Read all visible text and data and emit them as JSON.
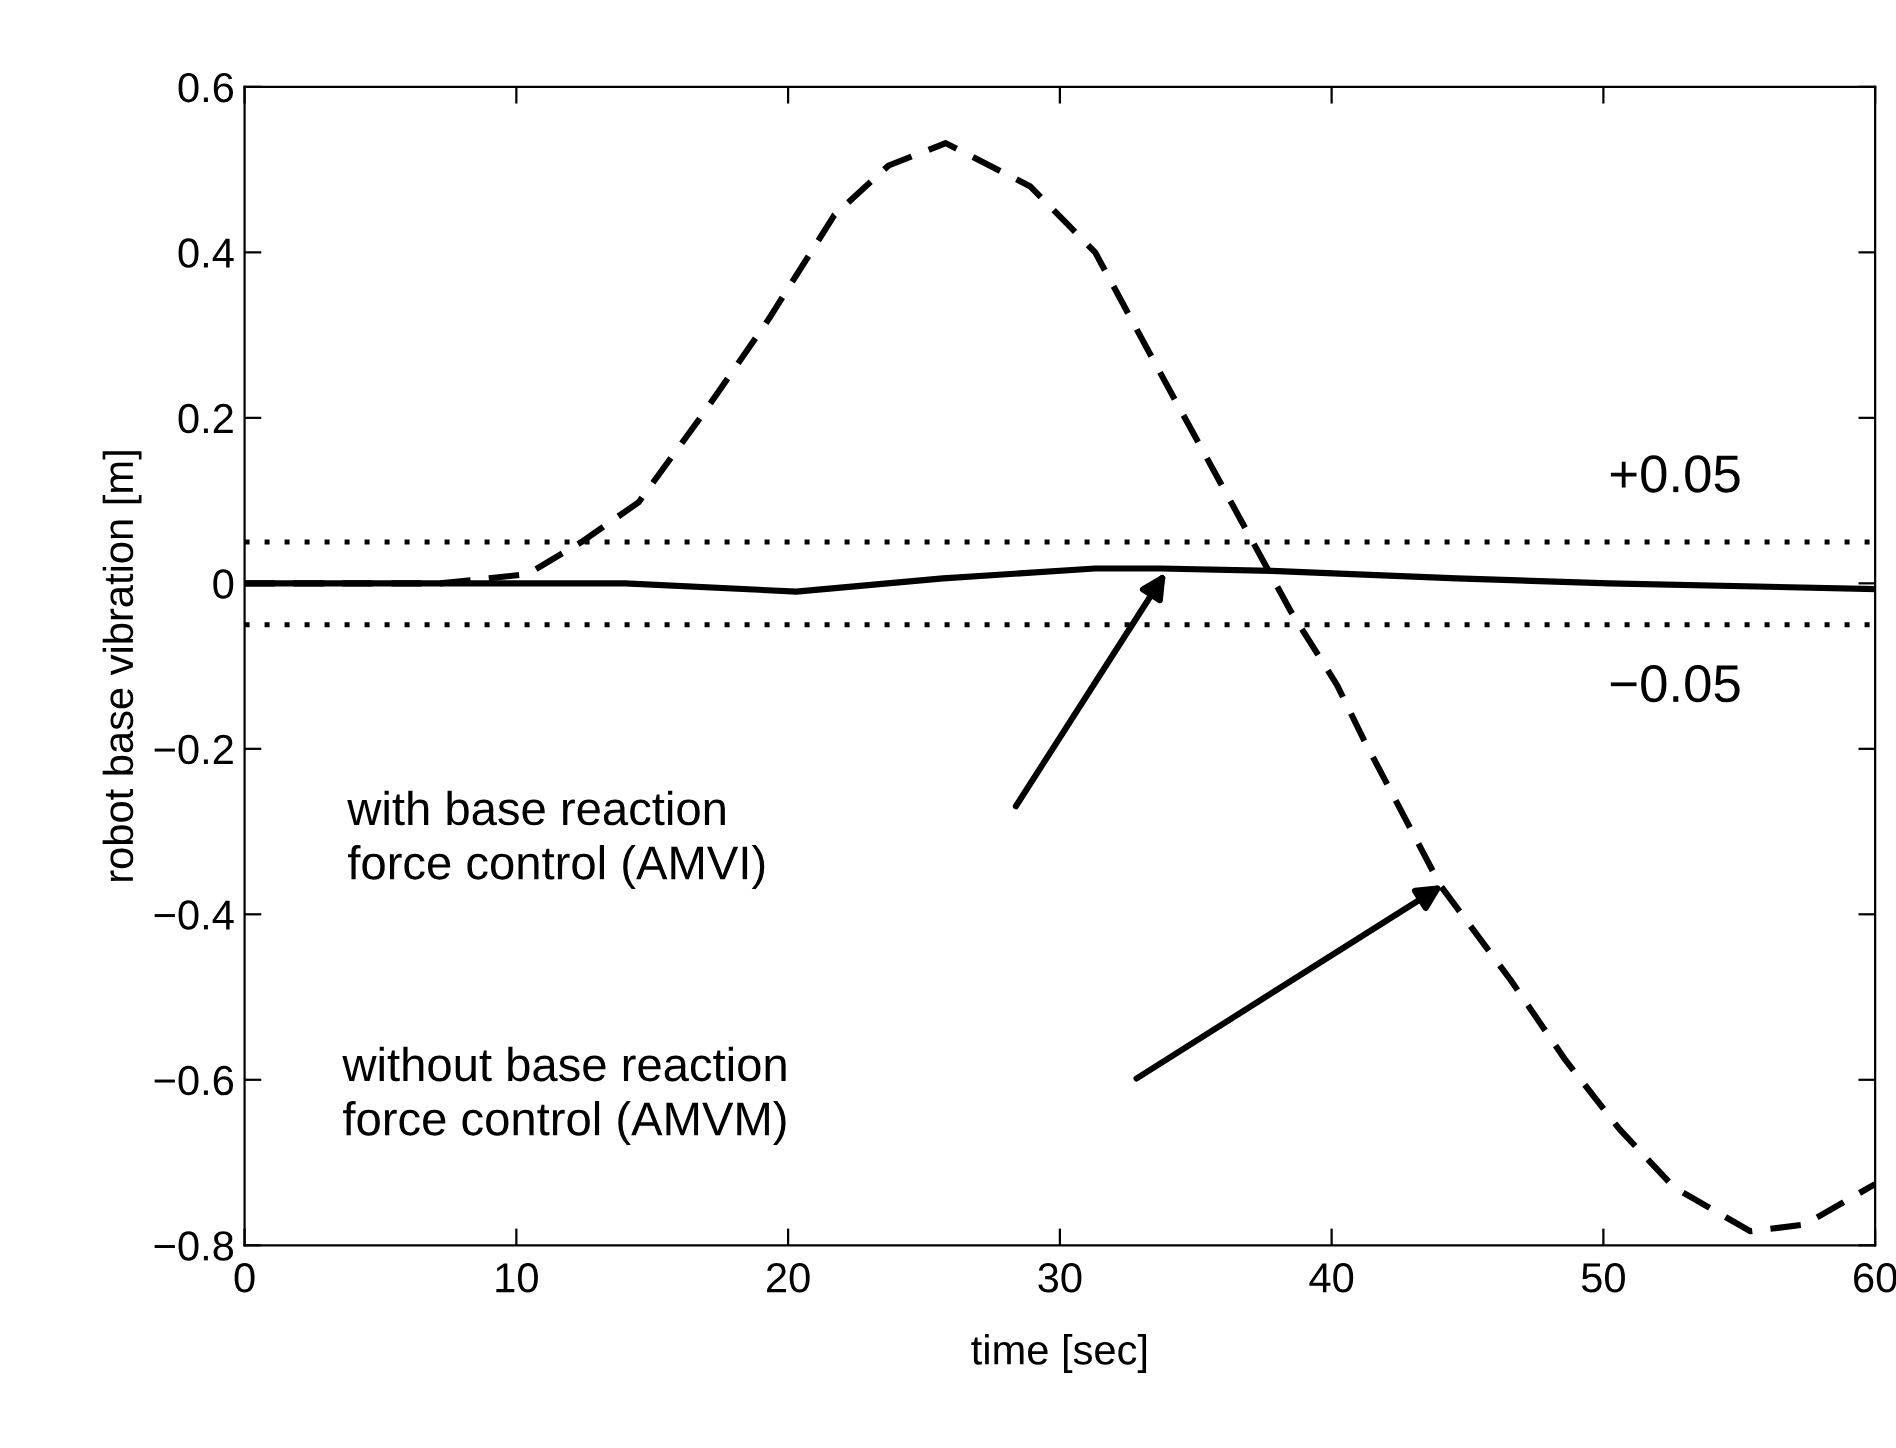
{
  "chart_data": {
    "type": "line",
    "xlabel": "time [sec]",
    "ylabel": "robot base vibration [m]",
    "xlim": [
      0,
      60
    ],
    "ylim": [
      -0.8,
      0.6
    ],
    "xticks": [
      0,
      10,
      20,
      30,
      40,
      50,
      60
    ],
    "yticks": [
      {
        "value": -0.8,
        "label": "−0.8"
      },
      {
        "value": -0.6,
        "label": "−0.6"
      },
      {
        "value": -0.4,
        "label": "−0.4"
      },
      {
        "value": -0.2,
        "label": "−0.2"
      },
      0,
      0.2,
      0.4,
      0.6
    ],
    "grid": false,
    "legend": false,
    "marker": "none",
    "series": [
      {
        "color": "#000000",
        "line_style": "dashed",
        "x": [
          0,
          7.2,
          10.4,
          12.4,
          14.5,
          16.9,
          19.3,
          21.7,
          23.7,
          25.8,
          28.9,
          31.3,
          33.7,
          35.7,
          37.1,
          38.5,
          40.2,
          41.2,
          44.0,
          46.6,
          48.6,
          50.6,
          52.6,
          55.4,
          57.4,
          60
        ],
        "values": [
          0,
          0,
          0.011,
          0.05,
          0.098,
          0.206,
          0.32,
          0.445,
          0.505,
          0.532,
          0.48,
          0.4,
          0.254,
          0.134,
          0.05,
          -0.034,
          -0.123,
          -0.19,
          -0.365,
          -0.48,
          -0.576,
          -0.66,
          -0.73,
          -0.783,
          -0.775,
          -0.726
        ]
      },
      {
        "color": "#000000",
        "line_style": "solid",
        "x": [
          0,
          14,
          20.3,
          25.7,
          31.3,
          33.7,
          37.8,
          44.6,
          50.2,
          60
        ],
        "values": [
          0,
          0,
          -0.01,
          0.006,
          0.018,
          0.018,
          0.015,
          0.006,
          0,
          -0.007
        ]
      }
    ],
    "ref_lines": [
      {
        "axis": "y",
        "value": 0.05,
        "label": "+0.05",
        "line_style": "dotted",
        "color": "#000000"
      },
      {
        "axis": "y",
        "value": -0.05,
        "label": "−0.05",
        "line_style": "dotted",
        "color": "#000000"
      }
    ],
    "annotations": [
      "with base reaction\nforce control (AMVI)",
      "without base reaction\nforce control (AMVM)"
    ]
  }
}
